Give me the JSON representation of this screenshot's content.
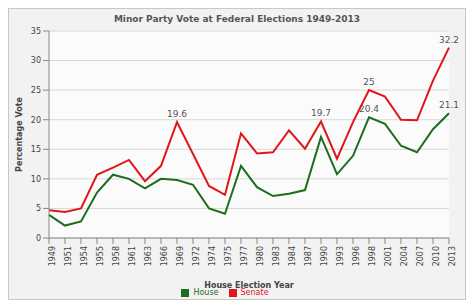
{
  "chart_data": {
    "type": "line",
    "title": "Minor Party Vote at Federal Elections 1949-2013",
    "x_label": "House Election Year",
    "y_label": "Percentage Vote",
    "categories": [
      "1949",
      "1951",
      "1954",
      "1955",
      "1958",
      "1961",
      "1963",
      "1966",
      "1969",
      "1972",
      "1974",
      "1975",
      "1977",
      "1980",
      "1983",
      "1984",
      "1987",
      "1990",
      "1993",
      "1996",
      "1998",
      "2001",
      "2004",
      "2007",
      "2010",
      "2013"
    ],
    "series": [
      {
        "name": "House",
        "color": "#1b6e1b",
        "values": [
          3.9,
          2.1,
          2.8,
          7.7,
          10.7,
          10.0,
          8.4,
          10.0,
          9.8,
          9.0,
          5.0,
          4.1,
          12.2,
          8.6,
          7.1,
          7.5,
          8.1,
          17.1,
          10.8,
          13.9,
          20.4,
          19.3,
          15.6,
          14.5,
          18.4,
          21.1
        ],
        "value_labels": [
          null,
          null,
          null,
          null,
          null,
          null,
          null,
          null,
          null,
          null,
          null,
          null,
          null,
          null,
          null,
          null,
          null,
          null,
          null,
          null,
          "20.4",
          null,
          null,
          null,
          null,
          "21.1"
        ]
      },
      {
        "name": "Senate",
        "color": "#e0161b",
        "values": [
          4.7,
          4.4,
          5.0,
          10.7,
          11.9,
          13.2,
          9.6,
          12.2,
          19.6,
          14.2,
          8.8,
          7.3,
          17.7,
          14.3,
          14.5,
          18.2,
          15.1,
          19.7,
          13.4,
          19.6,
          25,
          23.9,
          20.0,
          19.9,
          26.6,
          32.2
        ],
        "value_labels": [
          null,
          null,
          null,
          null,
          null,
          null,
          null,
          null,
          "19.6",
          null,
          null,
          null,
          null,
          null,
          null,
          null,
          null,
          "19.7",
          null,
          null,
          "25",
          null,
          null,
          null,
          null,
          "32.2"
        ]
      }
    ],
    "ylim": [
      0,
      35
    ],
    "yticks": [
      0,
      5,
      10,
      15,
      20,
      25,
      30,
      35
    ],
    "grid": true,
    "legend": "bottom"
  }
}
